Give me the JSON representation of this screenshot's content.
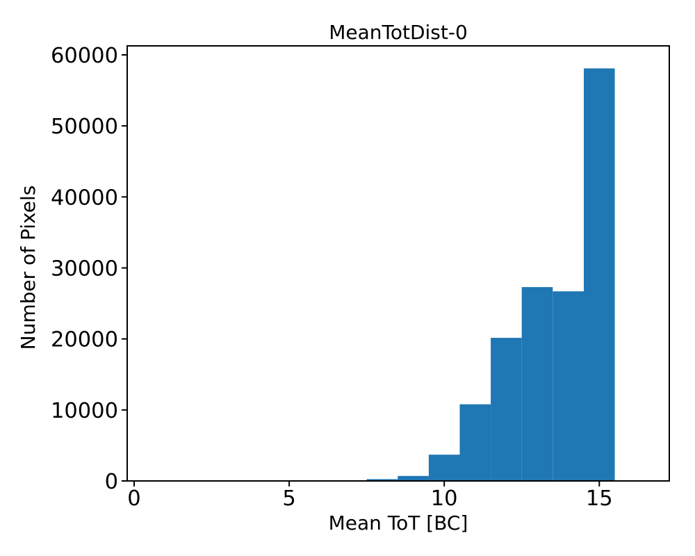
{
  "chart_data": {
    "type": "bar",
    "subtype": "histogram",
    "title": "MeanTotDist-0",
    "xlabel": "Mean ToT [BC]",
    "ylabel": "Number of Pixels",
    "xlim": [
      -0.224,
      17.257
    ],
    "ylim": [
      0,
      61270
    ],
    "grid": false,
    "legend_position": "none",
    "bar_color": "#1f77b4",
    "background_color": "#ffffff",
    "spine_color": "#000000",
    "xticks": [
      {
        "value": 0,
        "label": "0"
      },
      {
        "value": 5,
        "label": "5"
      },
      {
        "value": 10,
        "label": "10"
      },
      {
        "value": 15,
        "label": "15"
      }
    ],
    "yticks": [
      {
        "value": 0,
        "label": "0"
      },
      {
        "value": 10000,
        "label": "10000"
      },
      {
        "value": 20000,
        "label": "20000"
      },
      {
        "value": 30000,
        "label": "30000"
      },
      {
        "value": 40000,
        "label": "40000"
      },
      {
        "value": 50000,
        "label": "50000"
      },
      {
        "value": 60000,
        "label": "60000"
      }
    ],
    "bins": [
      {
        "x0": 7.5,
        "x1": 8.5,
        "count": 250
      },
      {
        "x0": 8.5,
        "x1": 9.5,
        "count": 700
      },
      {
        "x0": 9.5,
        "x1": 10.5,
        "count": 3700
      },
      {
        "x0": 10.5,
        "x1": 11.5,
        "count": 10800
      },
      {
        "x0": 11.5,
        "x1": 12.5,
        "count": 20150
      },
      {
        "x0": 12.5,
        "x1": 13.5,
        "count": 27300
      },
      {
        "x0": 13.5,
        "x1": 14.5,
        "count": 26700
      },
      {
        "x0": 14.5,
        "x1": 15.5,
        "count": 58100
      }
    ]
  }
}
